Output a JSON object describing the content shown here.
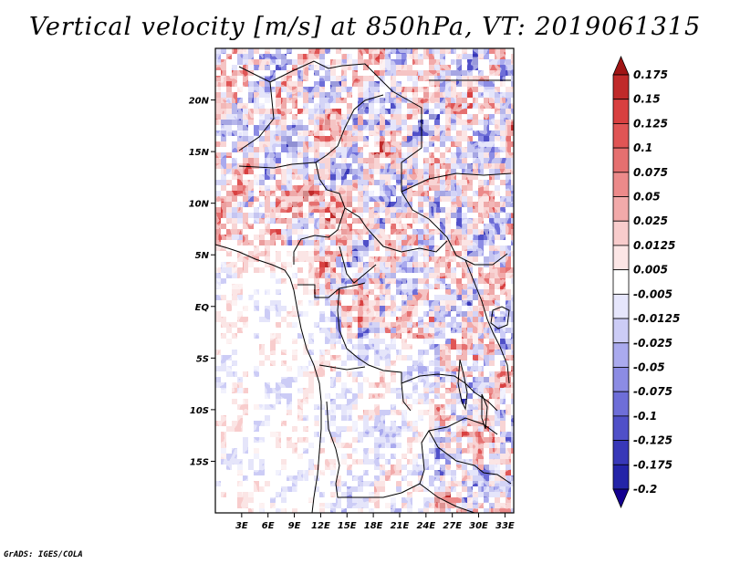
{
  "title": "Vertical velocity [m/s] at 850hPa, VT: 2019061315",
  "credit": "GrADS: IGES/COLA",
  "map": {
    "lat_labels": [
      "20N",
      "15N",
      "10N",
      "5N",
      "EQ",
      "5S",
      "10S",
      "15S"
    ],
    "lat_values": [
      20,
      15,
      10,
      5,
      0,
      -5,
      -10,
      -15
    ],
    "lon_labels": [
      "3E",
      "6E",
      "9E",
      "12E",
      "15E",
      "18E",
      "21E",
      "24E",
      "27E",
      "30E",
      "33E"
    ],
    "lon_values": [
      3,
      6,
      9,
      12,
      15,
      18,
      21,
      24,
      27,
      30,
      33
    ],
    "lon_range": [
      0,
      34
    ],
    "lat_range": [
      -20,
      25
    ]
  },
  "colorbar": {
    "labels": [
      "0.175",
      "0.15",
      "0.125",
      "0.1",
      "0.075",
      "0.05",
      "0.025",
      "0.0125",
      "0.005",
      "-0.005",
      "-0.0125",
      "-0.025",
      "-0.05",
      "-0.075",
      "-0.1",
      "-0.125",
      "-0.175",
      "-0.2"
    ],
    "colors": [
      "#a01515",
      "#c02a2a",
      "#d84040",
      "#e05555",
      "#e57070",
      "#ec8a8a",
      "#f2aaaa",
      "#f8cccc",
      "#fce6e6",
      "#ffffff",
      "#e6e6fc",
      "#ccccf6",
      "#aaaaee",
      "#8c8ce4",
      "#6e6ed8",
      "#5050c8",
      "#3838b8",
      "#2424a8",
      "#140090"
    ]
  }
}
